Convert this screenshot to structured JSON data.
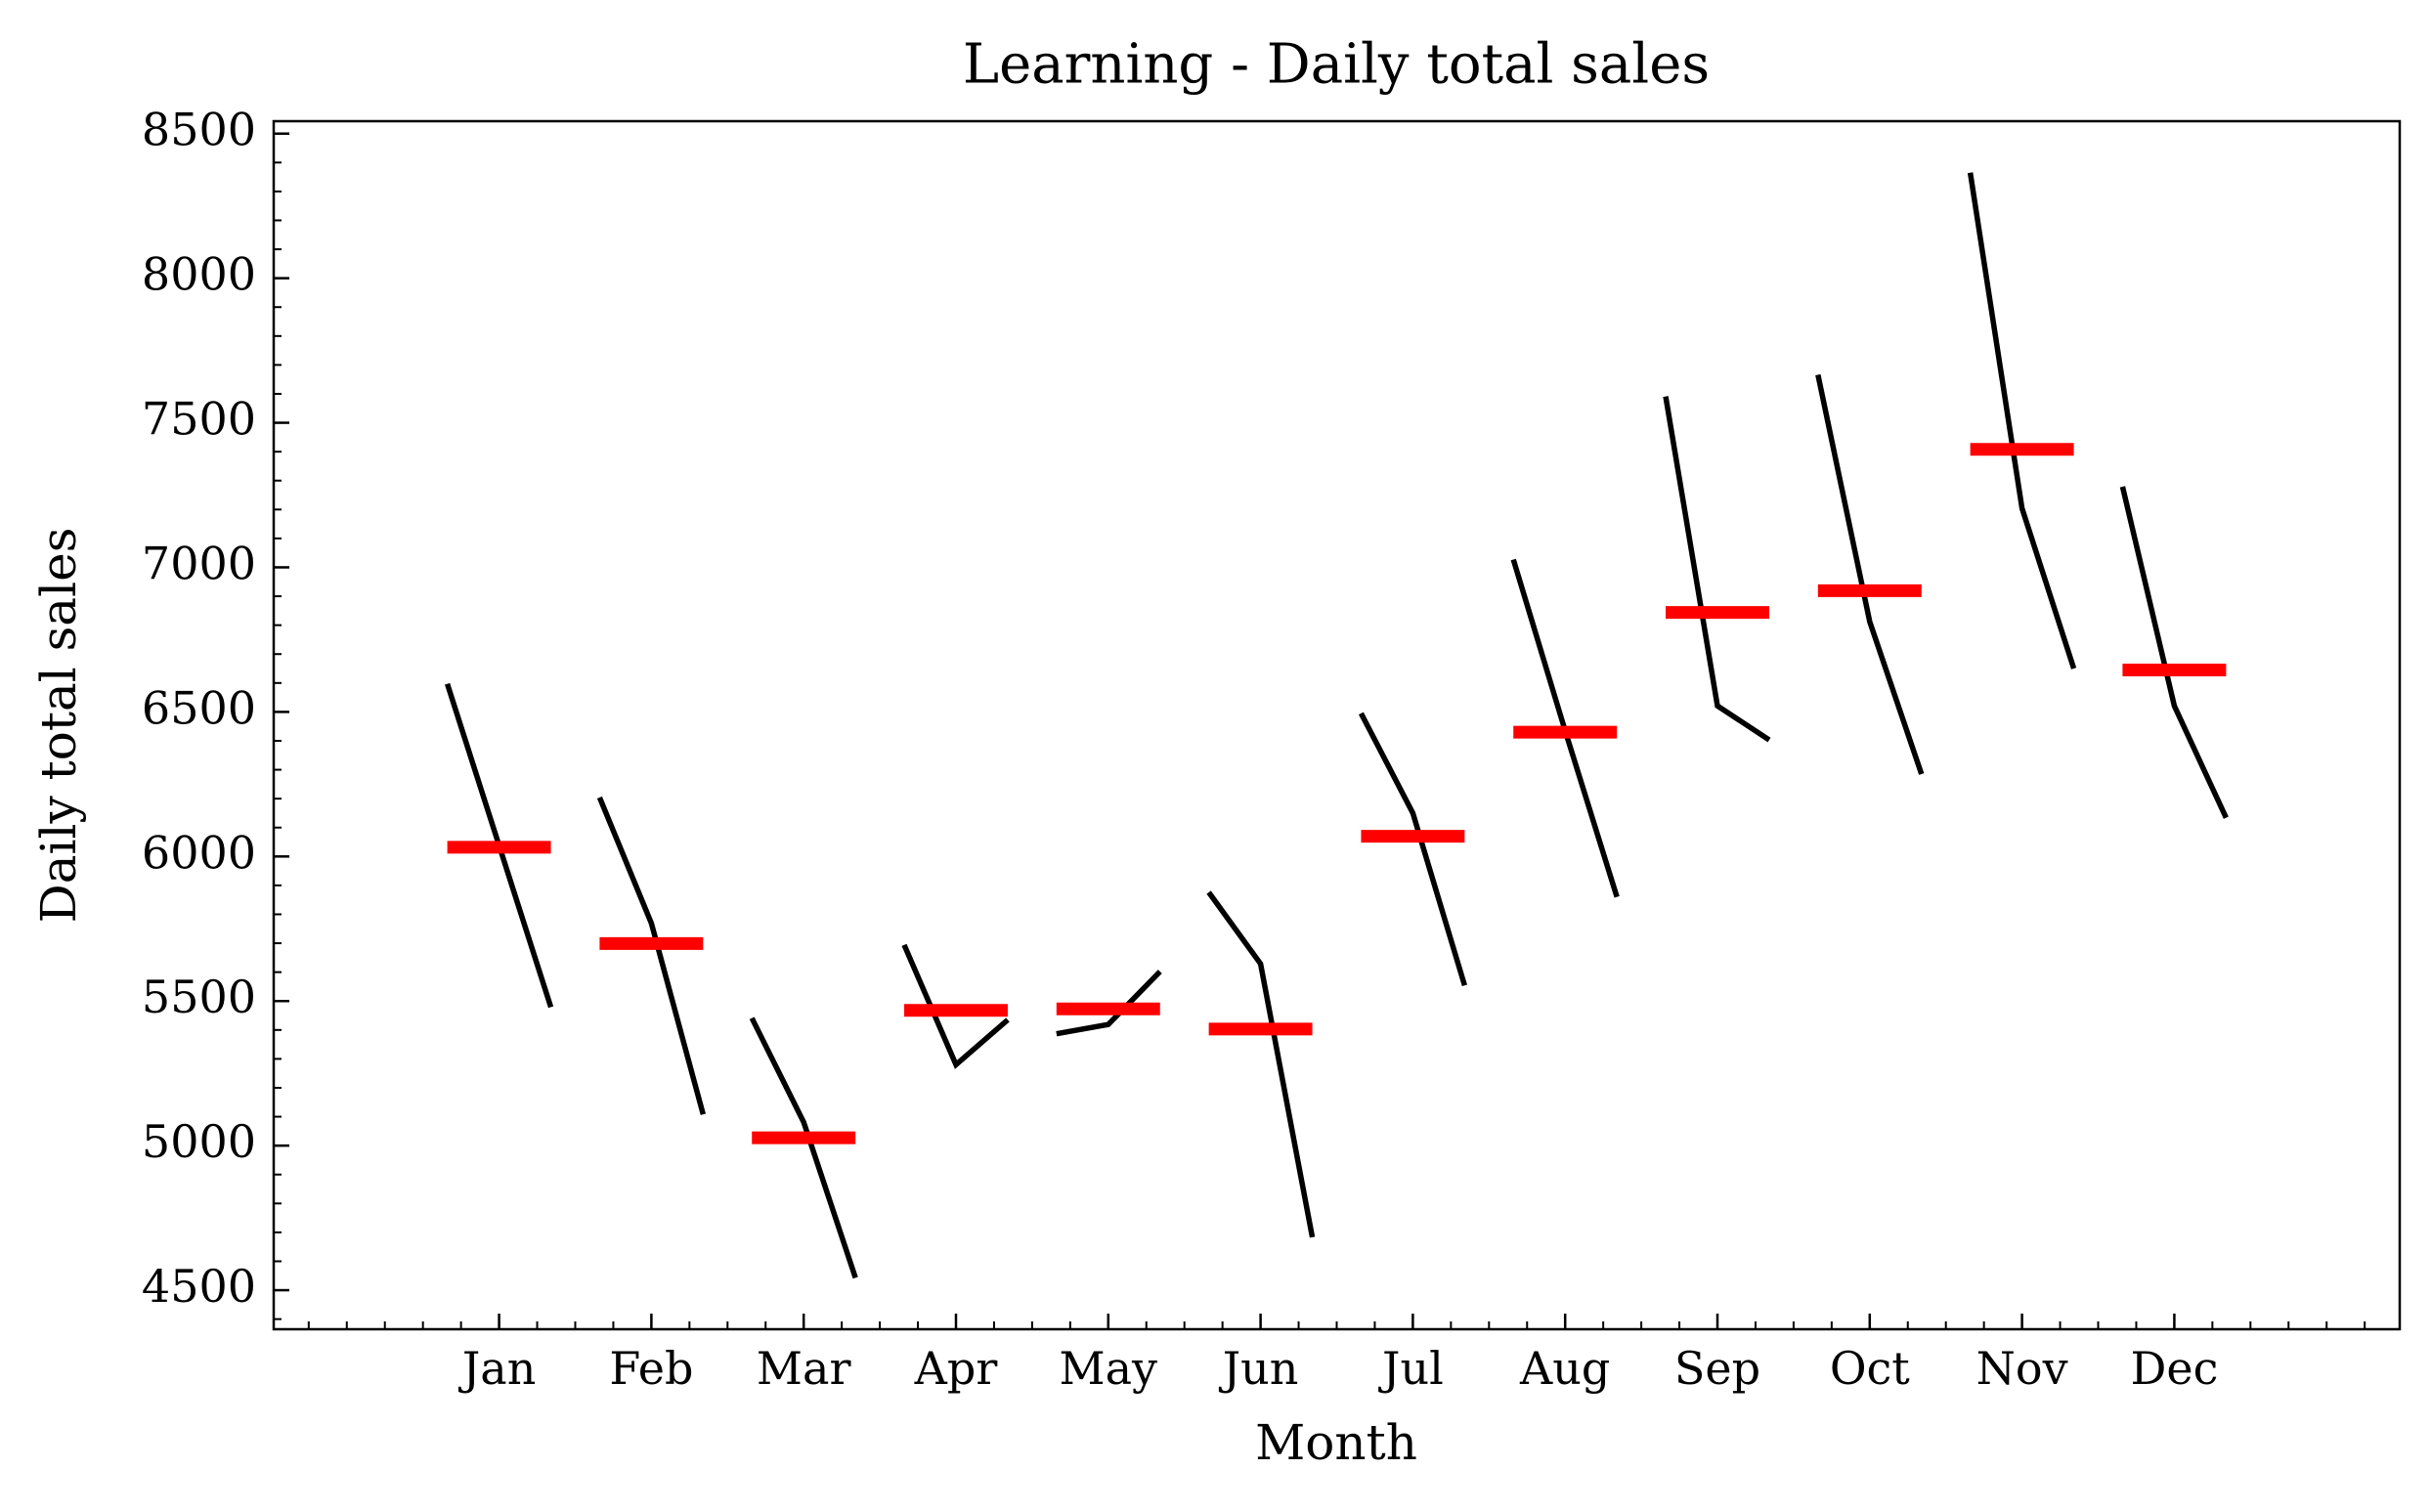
{
  "chart_data": {
    "type": "month_plot",
    "title": "Learning - Daily total sales",
    "xlabel": "Month",
    "ylabel": "Daily total sales",
    "categories": [
      "Jan",
      "Feb",
      "Mar",
      "Apr",
      "May",
      "Jun",
      "Jul",
      "Aug",
      "Sep",
      "Oct",
      "Nov",
      "Dec"
    ],
    "values": [
      [
        6597,
        6038,
        5479
      ],
      [
        6204,
        5769,
        5108
      ],
      [
        5441,
        5081,
        4543
      ],
      [
        5694,
        5280,
        5435
      ],
      [
        5387,
        5419,
        5602
      ],
      [
        5876,
        5629,
        4683
      ],
      [
        6495,
        6150,
        5554
      ],
      [
        7027,
        6435,
        5860
      ],
      [
        7591,
        6521,
        6403
      ],
      [
        7666,
        6812,
        6285
      ],
      [
        8365,
        7204,
        6650
      ],
      [
        7279,
        6521,
        6134
      ]
    ],
    "mean_values": [
      6032,
      5699,
      5027,
      5468,
      5473,
      5403,
      6070,
      6430,
      6844,
      6919,
      7408,
      6645
    ],
    "line_color": "#000000",
    "mean_color": "#ff0000",
    "ylim": [
      4365,
      8543
    ],
    "yticks": [
      4500,
      5000,
      5500,
      6000,
      6500,
      7000,
      7500,
      8000,
      8500
    ]
  }
}
